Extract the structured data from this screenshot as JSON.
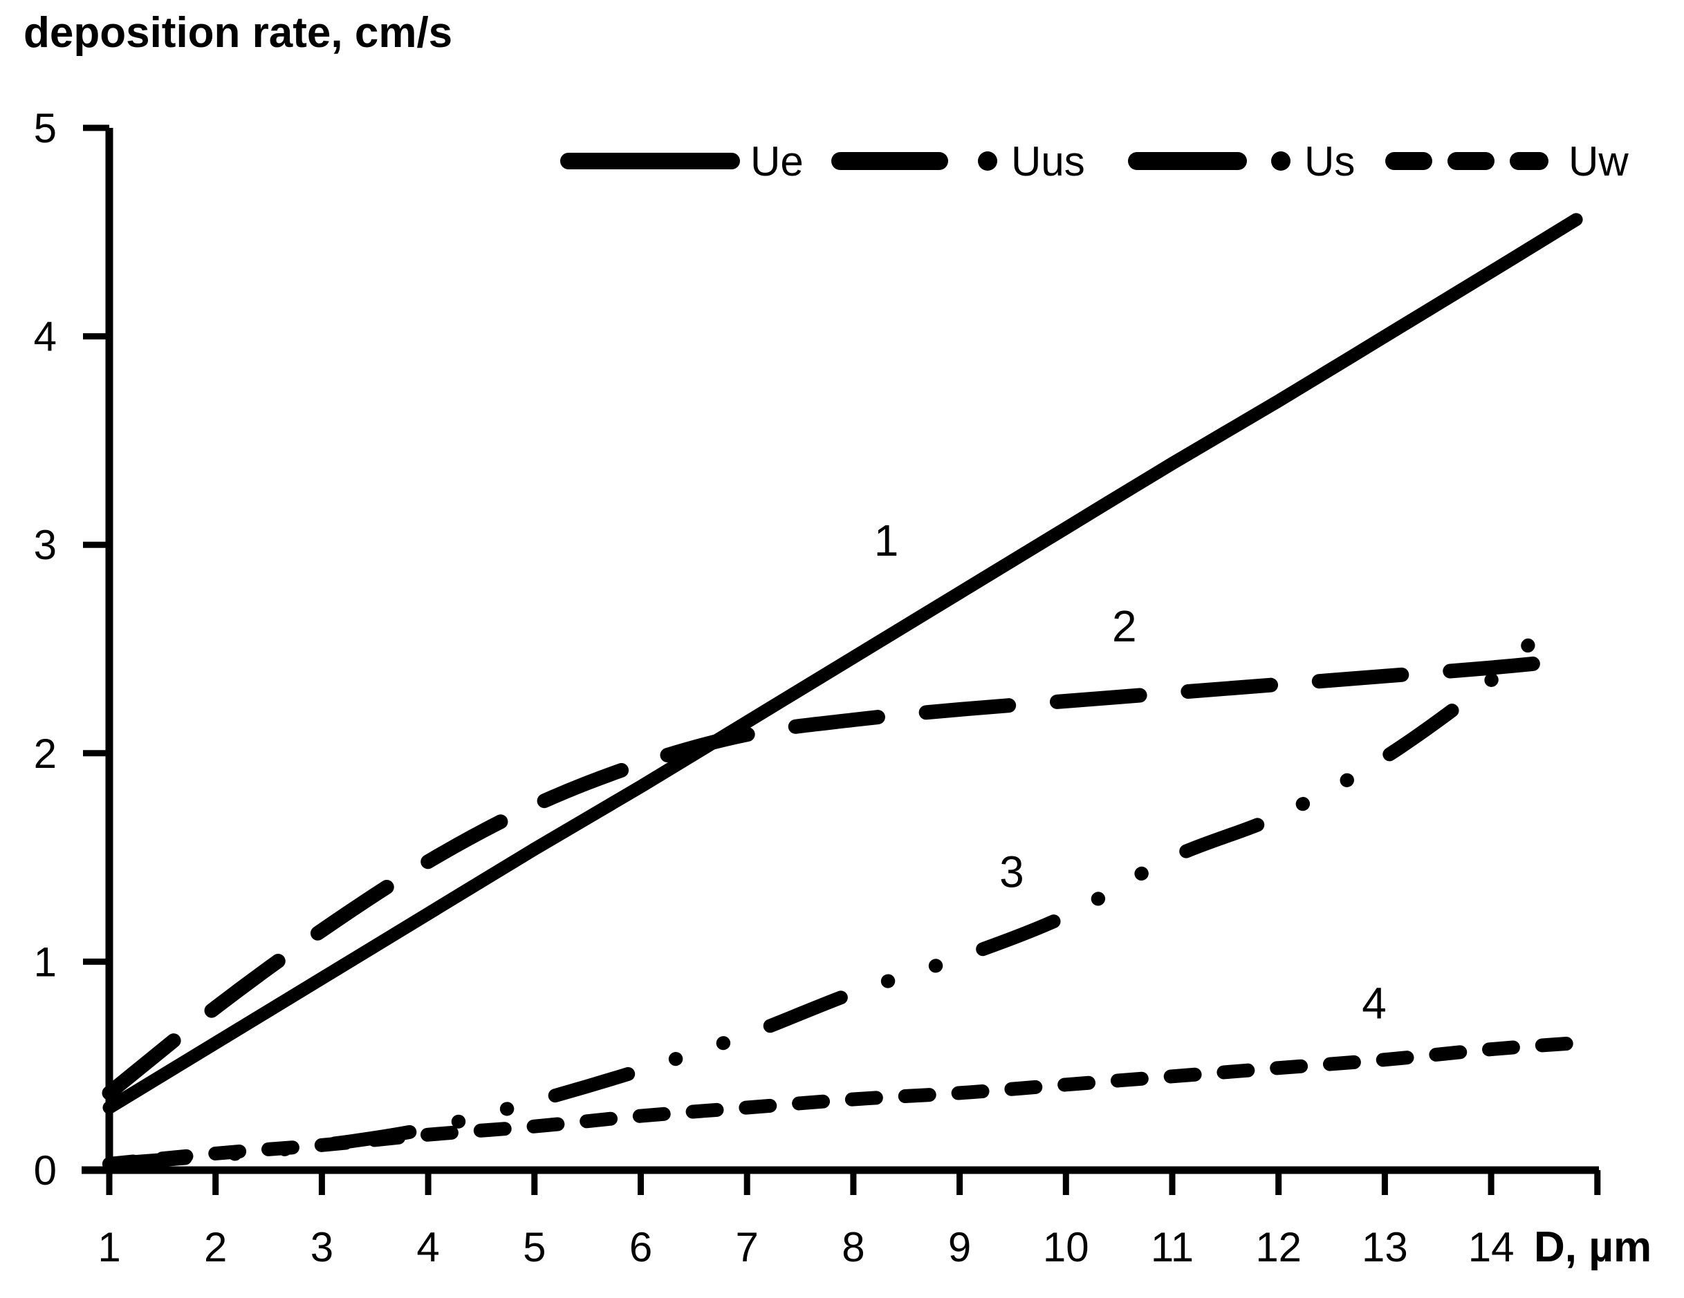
{
  "title": "deposition rate, cm/s",
  "chart_data": {
    "type": "line",
    "title": "deposition rate, cm/s",
    "xlabel": "D, µm",
    "ylabel": "deposition rate, cm/s",
    "xlim": [
      1,
      15
    ],
    "ylim": [
      0,
      5
    ],
    "x_ticks": [
      1,
      2,
      3,
      4,
      5,
      6,
      7,
      8,
      9,
      10,
      11,
      12,
      13,
      14
    ],
    "y_ticks": [
      0,
      1,
      2,
      3,
      4,
      5
    ],
    "grid": false,
    "legend_position": "top",
    "line_color": "#000000",
    "background_color": "#ffffff",
    "series": [
      {
        "name": "Ue",
        "curve_label": "1",
        "line_style": "solid",
        "legend_style": "solid",
        "color": "#000000",
        "x": [
          1,
          2,
          3,
          4,
          5,
          6,
          7,
          8,
          9,
          10,
          11,
          12,
          13,
          14,
          14.8
        ],
        "y": [
          0.3,
          0.61,
          0.92,
          1.23,
          1.54,
          1.84,
          2.15,
          2.46,
          2.77,
          3.08,
          3.39,
          3.69,
          4.0,
          4.31,
          4.56
        ]
      },
      {
        "name": "Uus",
        "curve_label": "2",
        "line_style": "long-dash",
        "legend_style": "dash-dot",
        "color": "#000000",
        "x": [
          1,
          2,
          3,
          4,
          5,
          6,
          7,
          8,
          9,
          10,
          11,
          12,
          13,
          14,
          14.8
        ],
        "y": [
          0.37,
          0.78,
          1.15,
          1.48,
          1.75,
          1.95,
          2.09,
          2.16,
          2.21,
          2.25,
          2.29,
          2.33,
          2.37,
          2.41,
          2.45
        ]
      },
      {
        "name": "Us",
        "curve_label": "3",
        "line_style": "dash-dot-dot",
        "legend_style": "dash-dot",
        "color": "#000000",
        "x": [
          1,
          2,
          3,
          4,
          5,
          6,
          7,
          8,
          9,
          10,
          11,
          12,
          13,
          14,
          14.5
        ],
        "y": [
          0.03,
          0.07,
          0.12,
          0.2,
          0.33,
          0.48,
          0.65,
          0.85,
          1.02,
          1.22,
          1.5,
          1.7,
          1.98,
          2.35,
          2.6
        ]
      },
      {
        "name": "Uw",
        "curve_label": "4",
        "line_style": "short-dash",
        "legend_style": "short-dash",
        "color": "#000000",
        "x": [
          1,
          2,
          3,
          4,
          5,
          6,
          7,
          8,
          9,
          10,
          11,
          12,
          13,
          14,
          14.8
        ],
        "y": [
          0.03,
          0.08,
          0.12,
          0.17,
          0.21,
          0.26,
          0.3,
          0.34,
          0.37,
          0.41,
          0.45,
          0.49,
          0.53,
          0.58,
          0.61
        ]
      }
    ],
    "annotations": [
      {
        "text": "1",
        "x": 8.31,
        "y": 3.02
      },
      {
        "text": "2",
        "x": 10.55,
        "y": 2.61
      },
      {
        "text": "3",
        "x": 9.49,
        "y": 1.43
      },
      {
        "text": "4",
        "x": 12.9,
        "y": 0.8
      }
    ]
  }
}
